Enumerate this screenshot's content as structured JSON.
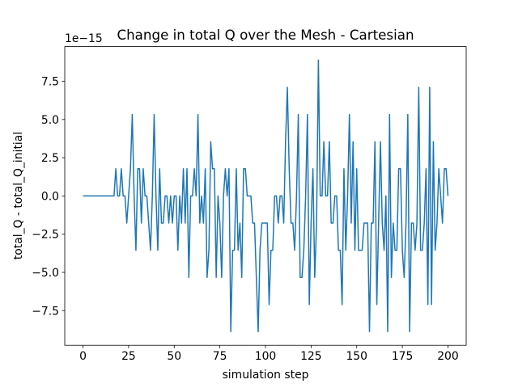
{
  "chart_data": {
    "type": "line",
    "title": "Change in total Q over the Mesh - Cartesian",
    "x_label": "simulation step",
    "y_label": "total_Q - total_Q_initial",
    "offset_text": "1e−15",
    "x": [
      0,
      1,
      2,
      3,
      4,
      5,
      6,
      7,
      8,
      9,
      10,
      11,
      12,
      13,
      14,
      15,
      16,
      17,
      18,
      19,
      20,
      21,
      22,
      23,
      24,
      25,
      26,
      27,
      28,
      29,
      30,
      31,
      32,
      33,
      34,
      35,
      36,
      37,
      38,
      39,
      40,
      41,
      42,
      43,
      44,
      45,
      46,
      47,
      48,
      49,
      50,
      51,
      52,
      53,
      54,
      55,
      56,
      57,
      58,
      59,
      60,
      61,
      62,
      63,
      64,
      65,
      66,
      67,
      68,
      69,
      70,
      71,
      72,
      73,
      74,
      75,
      76,
      77,
      78,
      79,
      80,
      81,
      82,
      83,
      84,
      85,
      86,
      87,
      88,
      89,
      90,
      91,
      92,
      93,
      94,
      95,
      96,
      97,
      98,
      99,
      100,
      101,
      102,
      103,
      104,
      105,
      106,
      107,
      108,
      109,
      110,
      111,
      112,
      113,
      114,
      115,
      116,
      117,
      118,
      119,
      120,
      121,
      122,
      123,
      124,
      125,
      126,
      127,
      128,
      129,
      130,
      131,
      132,
      133,
      134,
      135,
      136,
      137,
      138,
      139,
      140,
      141,
      142,
      143,
      144,
      145,
      146,
      147,
      148,
      149,
      150,
      151,
      152,
      153,
      154,
      155,
      156,
      157,
      158,
      159,
      160,
      161,
      162,
      163,
      164,
      165,
      166,
      167,
      168,
      169,
      170,
      171,
      172,
      173,
      174,
      175,
      176,
      177,
      178,
      179,
      180,
      181,
      182,
      183,
      184,
      185,
      186,
      187,
      188,
      189,
      190,
      191,
      192,
      193,
      194,
      195,
      196,
      197,
      198,
      199,
      200
    ],
    "series": [
      {
        "name": "total_Q - total_Q_initial",
        "color": "#1f77b4",
        "values": [
          0,
          0,
          0,
          0,
          0,
          0,
          0,
          0,
          0,
          0,
          0,
          0,
          0,
          0,
          0,
          0,
          0,
          0,
          1.776,
          0,
          0,
          1.776,
          0,
          0,
          -1.776,
          0,
          1.776,
          5.329,
          0,
          -3.553,
          1.776,
          1.776,
          -1.776,
          1.776,
          0,
          0,
          -1.776,
          -3.553,
          0,
          5.329,
          0,
          -3.553,
          1.776,
          -1.776,
          -1.776,
          0,
          0,
          -1.776,
          0,
          -1.776,
          0,
          0,
          -3.553,
          0,
          -1.776,
          1.776,
          -1.776,
          1.776,
          -5.329,
          0,
          0,
          1.776,
          0,
          5.329,
          -1.776,
          0,
          -1.776,
          1.776,
          -5.329,
          -3.553,
          3.553,
          1.776,
          1.776,
          -5.329,
          0,
          -1.776,
          -5.329,
          0,
          1.776,
          0,
          1.776,
          -8.882,
          -3.553,
          -3.553,
          1.776,
          -3.553,
          -1.776,
          -5.329,
          1.776,
          1.776,
          0,
          0,
          0,
          -1.776,
          -1.776,
          -5.329,
          -8.882,
          -3.553,
          -1.776,
          -1.776,
          -1.776,
          -1.776,
          -7.105,
          -3.553,
          -3.553,
          0,
          0,
          -1.776,
          0,
          0,
          -1.776,
          3.553,
          7.105,
          1.776,
          -1.776,
          -1.776,
          -3.553,
          0,
          5.329,
          -5.329,
          -5.329,
          -3.553,
          0,
          5.329,
          -7.105,
          -1.776,
          1.776,
          -5.329,
          -1.776,
          8.882,
          0,
          0,
          3.553,
          0,
          0,
          3.553,
          -1.776,
          -1.776,
          0,
          0,
          -3.553,
          -3.553,
          -7.105,
          1.776,
          -3.553,
          0,
          5.329,
          -1.776,
          3.553,
          -3.553,
          1.776,
          -3.553,
          -3.553,
          -3.553,
          -1.776,
          -1.776,
          -1.776,
          -8.882,
          -1.776,
          -1.776,
          3.553,
          -7.105,
          -1.776,
          3.553,
          -1.776,
          -3.553,
          0,
          -8.882,
          5.329,
          -5.329,
          -1.776,
          -3.553,
          -3.553,
          1.776,
          1.776,
          -3.553,
          -5.329,
          -1.776,
          5.329,
          -8.882,
          -1.776,
          -1.776,
          -3.553,
          -1.776,
          7.105,
          -3.553,
          -3.553,
          -1.776,
          1.776,
          -7.105,
          7.105,
          -7.105,
          3.553,
          -3.553,
          -1.776,
          1.776,
          0,
          -1.776,
          1.776,
          1.776,
          0
        ]
      }
    ],
    "xlim": [
      -10,
      210
    ],
    "ylim": [
      -9.77,
      9.77
    ],
    "xticks": [
      0,
      25,
      50,
      75,
      100,
      125,
      150,
      175,
      200
    ],
    "yticks": [
      {
        "value": -7.5,
        "label": "−7.5"
      },
      {
        "value": -5,
        "label": "−5.0"
      },
      {
        "value": -2.5,
        "label": "−2.5"
      },
      {
        "value": 0,
        "label": "0.0"
      },
      2.5,
      {
        "value": 5,
        "label": "5.0"
      },
      7.5
    ],
    "grid": false
  }
}
